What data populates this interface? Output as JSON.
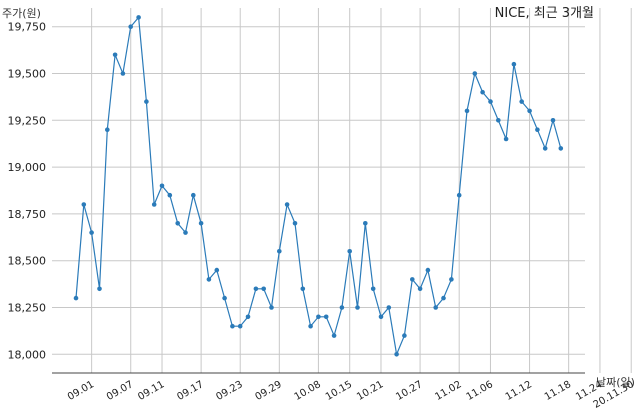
{
  "chart_data": {
    "type": "line",
    "title": "NICE, 최근 3개월",
    "ylabel": "주가(원)",
    "xlabel": "날짜(일)",
    "ylim": [
      17900,
      19850
    ],
    "yticks": [
      18000,
      18250,
      18500,
      18750,
      19000,
      19250,
      19500,
      19750
    ],
    "ytick_labels": [
      "18,000",
      "18,250",
      "18,500",
      "18,750",
      "19,000",
      "19,250",
      "19,500",
      "19,750"
    ],
    "xtick_positions": [
      2,
      7,
      11,
      16,
      21,
      26,
      31,
      35,
      39,
      44,
      49,
      53,
      58,
      63,
      67,
      71
    ],
    "xtick_labels": [
      "09.01",
      "09.07",
      "09.11",
      "09.17",
      "09.23",
      "09.29",
      "10.08",
      "10.15",
      "10.21",
      "10.27",
      "11.02",
      "11.06",
      "11.12",
      "11.18",
      "11.24",
      "20.11.30"
    ],
    "grid": true,
    "line_color": "#2b7bb9",
    "series": [
      {
        "values": [
          18300,
          18800,
          18650,
          18350,
          19200,
          19600,
          19500,
          19750,
          19800,
          19350,
          18800,
          18900,
          18850,
          18700,
          18650,
          18850,
          18700,
          18400,
          18450,
          18300,
          18150,
          18150,
          18200,
          18350,
          18350,
          18250,
          18550,
          18800,
          18700,
          18350,
          18150,
          18200,
          18200,
          18100,
          18250,
          18550,
          18250,
          18700,
          18350,
          18200,
          18250,
          18000,
          18100,
          18400,
          18350,
          18450,
          18250,
          18300,
          18400,
          18850,
          19300,
          19500,
          19400,
          19350,
          19250,
          19150,
          19550,
          19350,
          19300,
          19200,
          19100,
          19250,
          19100
        ]
      }
    ]
  }
}
